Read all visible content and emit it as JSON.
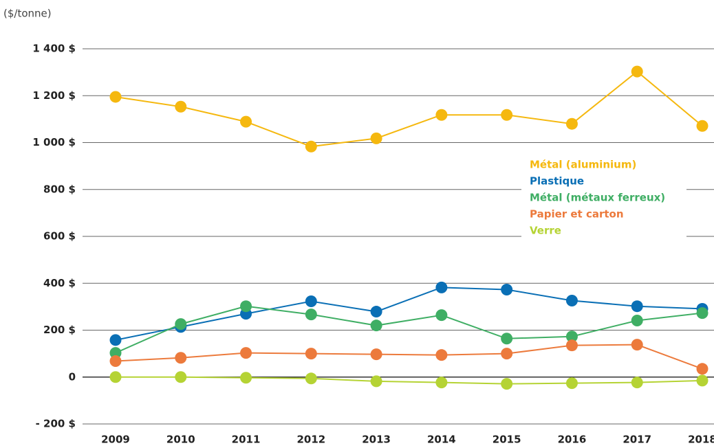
{
  "chart_data": {
    "type": "line",
    "subtitle": "($/tonne)",
    "categories": [
      "2009",
      "2010",
      "2011",
      "2012",
      "2013",
      "2014",
      "2015",
      "2016",
      "2017",
      "2018"
    ],
    "series": [
      {
        "name": "Métal (aluminium)",
        "color": "#f5b80f",
        "values": [
          1195,
          1153,
          1089,
          983,
          1018,
          1118,
          1118,
          1080,
          1303,
          1071
        ]
      },
      {
        "name": "Plastique",
        "color": "#0a6fb5",
        "values": [
          158,
          214,
          270,
          323,
          279,
          382,
          373,
          326,
          302,
          291
        ]
      },
      {
        "name": "Métal (métaux ferreux)",
        "color": "#3fae64",
        "values": [
          103,
          226,
          302,
          267,
          220,
          264,
          164,
          173,
          241,
          273
        ]
      },
      {
        "name": "Papier et carton",
        "color": "#ec7a3c",
        "values": [
          68,
          82,
          103,
          100,
          97,
          94,
          100,
          135,
          138,
          35
        ]
      },
      {
        "name": "Verre",
        "color": "#b5d334",
        "values": [
          0,
          0,
          -3,
          -6,
          -18,
          -23,
          -29,
          -26,
          -23,
          -15
        ]
      }
    ],
    "ylim": [
      -200,
      1400
    ],
    "yticks": [
      {
        "value": -200,
        "label": "- 200 $"
      },
      0,
      {
        "value": 200,
        "label": "200 $"
      },
      {
        "value": 400,
        "label": "400 $"
      },
      {
        "value": 600,
        "label": "600 $"
      },
      {
        "value": 800,
        "label": "800 $"
      },
      {
        "value": 1000,
        "label": "1 000 $"
      },
      {
        "value": 1200,
        "label": "1 200 $"
      },
      {
        "value": 1400,
        "label": "1 400 $"
      }
    ],
    "grid": true
  }
}
